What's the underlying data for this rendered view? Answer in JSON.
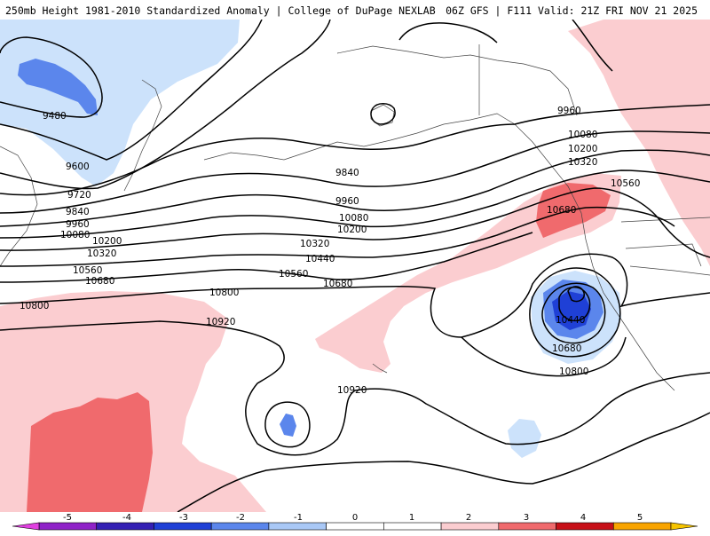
{
  "header": {
    "title_left": "250mb Height 1981-2010 Standardized Anomaly | College of DuPage NEXLAB",
    "title_right": "06Z GFS | F111 Valid: 21Z FRI NOV 21 2025"
  },
  "colors": {
    "neg_weak": "#cce2fb",
    "neg_mid": "#5b86ec",
    "neg_strong": "#1f40d6",
    "pos_weak": "#fbcdd0",
    "pos_mid": "#f06a6d",
    "coast": "#444444",
    "contour": "#000000"
  },
  "contour_labels": [
    "9480",
    "9600",
    "9720",
    "9840",
    "9960",
    "10080",
    "10200",
    "10320",
    "10560",
    "10680",
    "10800",
    "10920",
    "9840",
    "9960",
    "10080",
    "10200",
    "10320",
    "10440",
    "10560",
    "10680",
    "10800",
    "9960",
    "10080",
    "10200",
    "10320",
    "10560",
    "10680",
    "10440",
    "10680",
    "10800",
    "10920"
  ],
  "colorbar": {
    "ticks": [
      "-5",
      "-4",
      "-3",
      "-2",
      "-1",
      "0",
      "1",
      "2",
      "3",
      "4",
      "5"
    ],
    "colors": [
      "#8f22c8",
      "#3420b4",
      "#1f40d6",
      "#5b86ec",
      "#a9c8f6",
      "#ffffff",
      "#ffffff",
      "#fbcdd0",
      "#f06a6d",
      "#c71018",
      "#f9a400"
    ]
  }
}
